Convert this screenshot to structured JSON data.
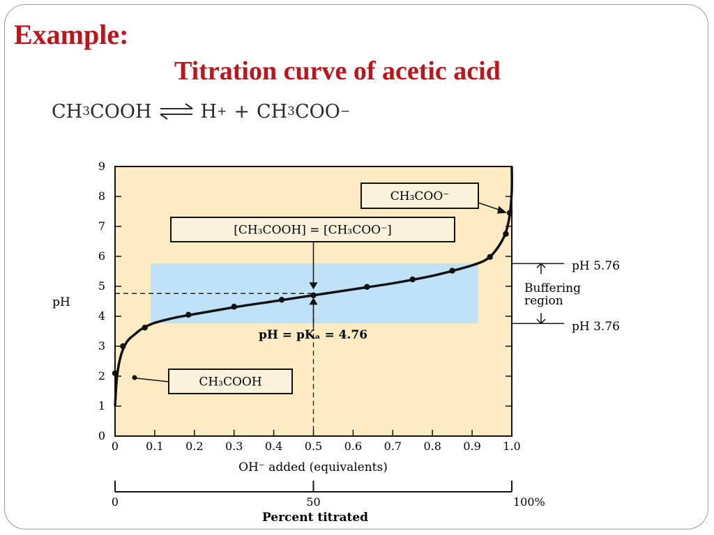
{
  "slide": {
    "heading": "Example:",
    "title": "Titration curve of acetic acid"
  },
  "equation": {
    "reactant_a": "CH",
    "reactant_sub": "3",
    "reactant_b": "COOH",
    "product1": "H",
    "product1_sup": "+",
    "plus": "+",
    "product2_a": "CH",
    "product2_sub": "3",
    "product2_b": "COO",
    "product2_sup": "−"
  },
  "colors": {
    "plot_background": "#fcebc3",
    "buffer_region": "#bfe2f6",
    "curve": "#111111",
    "title_red": "#c0141c"
  },
  "chart_data": {
    "type": "line",
    "xlabel": "OH⁻ added (equivalents)",
    "ylabel": "pH",
    "xlim": [
      0,
      1.0
    ],
    "ylim": [
      0,
      9
    ],
    "xticks": [
      "0",
      "0.1",
      "0.2",
      "0.3",
      "0.4",
      "0.5",
      "0.6",
      "0.7",
      "0.8",
      "0.9",
      "1.0"
    ],
    "yticks": [
      "0",
      "1",
      "2",
      "3",
      "4",
      "5",
      "6",
      "7",
      "8",
      "9"
    ],
    "grid": false,
    "secondary_axis": {
      "label": "Percent titrated",
      "ticks": [
        {
          "x": 0,
          "label": "0"
        },
        {
          "x": 0.5,
          "label": "50"
        },
        {
          "x": 1.0,
          "label": "100%"
        }
      ]
    },
    "series": [
      {
        "points": [
          {
            "x": 0.0,
            "y": 1.0
          },
          {
            "x": 0.005,
            "y": 2.0
          },
          {
            "x": 0.015,
            "y": 2.7
          },
          {
            "x": 0.03,
            "y": 3.15
          },
          {
            "x": 0.05,
            "y": 3.4
          },
          {
            "x": 0.07,
            "y": 3.6
          },
          {
            "x": 0.1,
            "y": 3.78
          },
          {
            "x": 0.15,
            "y": 3.95
          },
          {
            "x": 0.2,
            "y": 4.07
          },
          {
            "x": 0.3,
            "y": 4.3
          },
          {
            "x": 0.4,
            "y": 4.5
          },
          {
            "x": 0.5,
            "y": 4.7
          },
          {
            "x": 0.6,
            "y": 4.9
          },
          {
            "x": 0.7,
            "y": 5.1
          },
          {
            "x": 0.8,
            "y": 5.35
          },
          {
            "x": 0.86,
            "y": 5.55
          },
          {
            "x": 0.9,
            "y": 5.7
          },
          {
            "x": 0.93,
            "y": 5.85
          },
          {
            "x": 0.95,
            "y": 6.05
          },
          {
            "x": 0.97,
            "y": 6.4
          },
          {
            "x": 0.985,
            "y": 6.8
          },
          {
            "x": 0.995,
            "y": 7.4
          },
          {
            "x": 1.0,
            "y": 8.2
          },
          {
            "x": 1.0,
            "y": 9.0
          }
        ],
        "markers": [
          {
            "x": 0.0,
            "y": 2.1
          },
          {
            "x": 0.02,
            "y": 3.0
          },
          {
            "x": 0.075,
            "y": 3.62
          },
          {
            "x": 0.185,
            "y": 4.05
          },
          {
            "x": 0.3,
            "y": 4.32
          },
          {
            "x": 0.42,
            "y": 4.55
          },
          {
            "x": 0.5,
            "y": 4.7
          },
          {
            "x": 0.635,
            "y": 4.98
          },
          {
            "x": 0.75,
            "y": 5.23
          },
          {
            "x": 0.85,
            "y": 5.52
          },
          {
            "x": 0.945,
            "y": 5.98
          },
          {
            "x": 0.985,
            "y": 6.75
          },
          {
            "x": 0.995,
            "y": 7.45
          }
        ]
      }
    ],
    "buffer_region": {
      "x_from": 0.09,
      "x_to": 0.915,
      "y_from": 3.76,
      "y_to": 5.76
    },
    "pka_point": {
      "x": 0.5,
      "y": 4.76
    },
    "annotations": {
      "box_ch3coo": "CH₃COO⁻",
      "box_equal": "[CH₃COOH] = [CH₃COO⁻]",
      "pka_text": "pH = pKₐ = 4.76",
      "box_ch3cooh": "CH₃COOH",
      "ph_high": "pH 5.76",
      "ph_low": "pH 3.76",
      "buffer_line1": "Buffering",
      "buffer_line2": "region"
    }
  }
}
